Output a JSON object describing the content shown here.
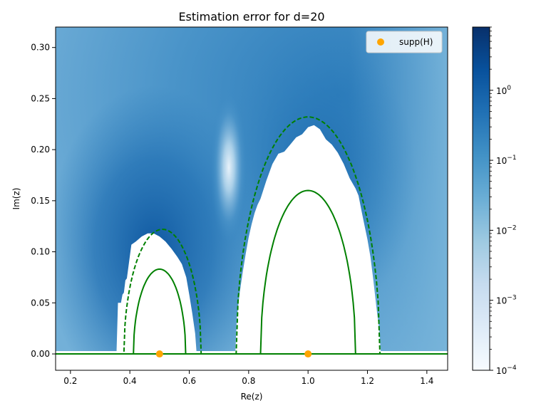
{
  "chart_data": {
    "type": "heatmap",
    "title": "Estimation error for d=20",
    "xlabel": "Re(z)",
    "ylabel": "Im(z)",
    "xlim": [
      0.15,
      1.47
    ],
    "ylim": [
      -0.016,
      0.32
    ],
    "xticks": [
      0.2,
      0.4,
      0.6,
      0.8,
      1.0,
      1.2,
      1.4
    ],
    "xtick_labels": [
      "0.2",
      "0.4",
      "0.6",
      "0.8",
      "1.0",
      "1.2",
      "1.4"
    ],
    "yticks": [
      0.0,
      0.05,
      0.1,
      0.15,
      0.2,
      0.25,
      0.3
    ],
    "ytick_labels": [
      "0.00",
      "0.05",
      "0.10",
      "0.15",
      "0.20",
      "0.25",
      "0.30"
    ],
    "colorbar": {
      "scale": "log",
      "range": [
        0.0001,
        8
      ],
      "ticks": [
        0.0001,
        0.001,
        0.01,
        0.1,
        1
      ],
      "tick_labels": [
        {
          "base": "10",
          "exp": "−4"
        },
        {
          "base": "10",
          "exp": "−3"
        },
        {
          "base": "10",
          "exp": "−2"
        },
        {
          "base": "10",
          "exp": "−1"
        },
        {
          "base": "10",
          "exp": "0"
        }
      ],
      "colors": [
        "#f7fbff",
        "#deebf7",
        "#c6dbef",
        "#9ecae1",
        "#6baed6",
        "#4292c6",
        "#2171b5",
        "#08519c",
        "#08306b"
      ]
    },
    "legend": {
      "location": "top-right",
      "label": "supp(H)",
      "color": "#ffa500"
    },
    "support_points": [
      {
        "x": 0.5,
        "y": 0.0
      },
      {
        "x": 1.0,
        "y": 0.0
      }
    ],
    "solid_curves": [
      {
        "center": 0.5,
        "half_width": 0.088,
        "height": 0.083,
        "color": "#008000"
      },
      {
        "center": 1.0,
        "half_width": 0.16,
        "height": 0.16,
        "color": "#008000"
      }
    ],
    "dashed_curves": [
      {
        "center": 0.51,
        "half_width": 0.13,
        "height": 0.122,
        "color": "#008000"
      },
      {
        "center": 1.0,
        "half_width": 0.242,
        "height": 0.232,
        "color": "#008000"
      }
    ],
    "white_regions": [
      {
        "x": [
          0.355,
          0.36,
          0.37,
          0.375,
          0.38,
          0.385,
          0.39,
          0.395,
          0.405,
          0.42,
          0.44,
          0.46,
          0.48,
          0.5,
          0.52,
          0.54,
          0.56,
          0.575,
          0.59,
          0.6,
          0.61,
          0.62,
          0.625
        ],
        "y": [
          0.0,
          0.05,
          0.05,
          0.058,
          0.06,
          0.072,
          0.074,
          0.085,
          0.107,
          0.11,
          0.115,
          0.118,
          0.118,
          0.115,
          0.11,
          0.103,
          0.095,
          0.088,
          0.075,
          0.058,
          0.04,
          0.02,
          0.0
        ]
      },
      {
        "x": [
          0.755,
          0.76,
          0.77,
          0.78,
          0.79,
          0.8,
          0.81,
          0.82,
          0.83,
          0.84,
          0.86,
          0.88,
          0.9,
          0.92,
          0.94,
          0.96,
          0.98,
          1.0,
          1.02,
          1.04,
          1.06,
          1.08,
          1.1,
          1.12,
          1.14,
          1.16,
          1.17,
          1.18,
          1.19,
          1.2,
          1.21,
          1.22,
          1.23,
          1.24,
          1.245
        ],
        "y": [
          0.0,
          0.035,
          0.06,
          0.08,
          0.098,
          0.114,
          0.127,
          0.138,
          0.146,
          0.152,
          0.17,
          0.186,
          0.196,
          0.198,
          0.205,
          0.212,
          0.215,
          0.222,
          0.224,
          0.22,
          0.21,
          0.205,
          0.197,
          0.186,
          0.172,
          0.162,
          0.155,
          0.14,
          0.126,
          0.112,
          0.095,
          0.072,
          0.046,
          0.022,
          0.0
        ]
      }
    ]
  }
}
